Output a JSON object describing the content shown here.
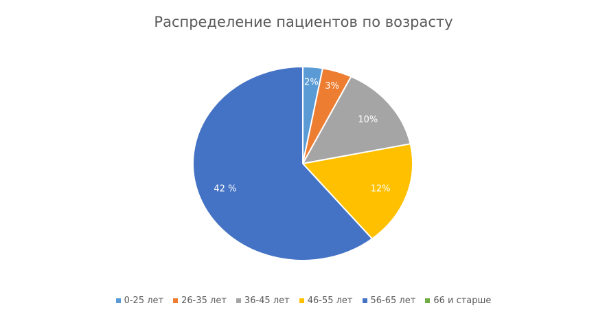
{
  "chart_data": {
    "type": "pie",
    "title": "Распределение пациентов по возрасту",
    "categories": [
      "0-25 лет",
      "26-35 лет",
      "36-45 лет",
      "46-55 лет",
      "56-65 лет",
      "66 и старше"
    ],
    "values": [
      2,
      3,
      10,
      12,
      42,
      0
    ],
    "data_labels": [
      "2%",
      "3%",
      "10%",
      "12%",
      "42 %",
      ""
    ],
    "colors": [
      "#5B9BD5",
      "#ED7D31",
      "#A5A5A5",
      "#FFC000",
      "#4472C4",
      "#70AD47"
    ],
    "legend_position": "bottom",
    "start_angle": "12 o'clock, clockwise"
  }
}
